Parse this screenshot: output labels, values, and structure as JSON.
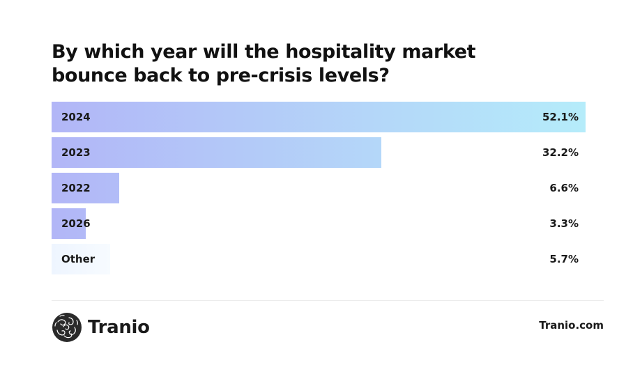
{
  "chart_data": {
    "type": "bar",
    "orientation": "horizontal",
    "title": "By which year will the hospitality market bounce back to pre-crisis levels?",
    "categories": [
      "2024",
      "2023",
      "2022",
      "2026",
      "Other"
    ],
    "values": [
      52.1,
      32.2,
      6.6,
      3.3,
      5.7
    ],
    "value_labels": [
      "52.1%",
      "32.2%",
      "6.6%",
      "3.3%",
      "5.7%"
    ],
    "unit": "%",
    "xlim": [
      0,
      52.1
    ],
    "grid": false,
    "colors": {
      "gradient_start": "#b2b6f7",
      "gradient_end": "#b5ecfa",
      "other_bar": "#eef5ff"
    }
  },
  "footer": {
    "brand": "Tranio",
    "website": "Tranio.com",
    "logo_icon": "tranio-swirl-logo-icon"
  }
}
